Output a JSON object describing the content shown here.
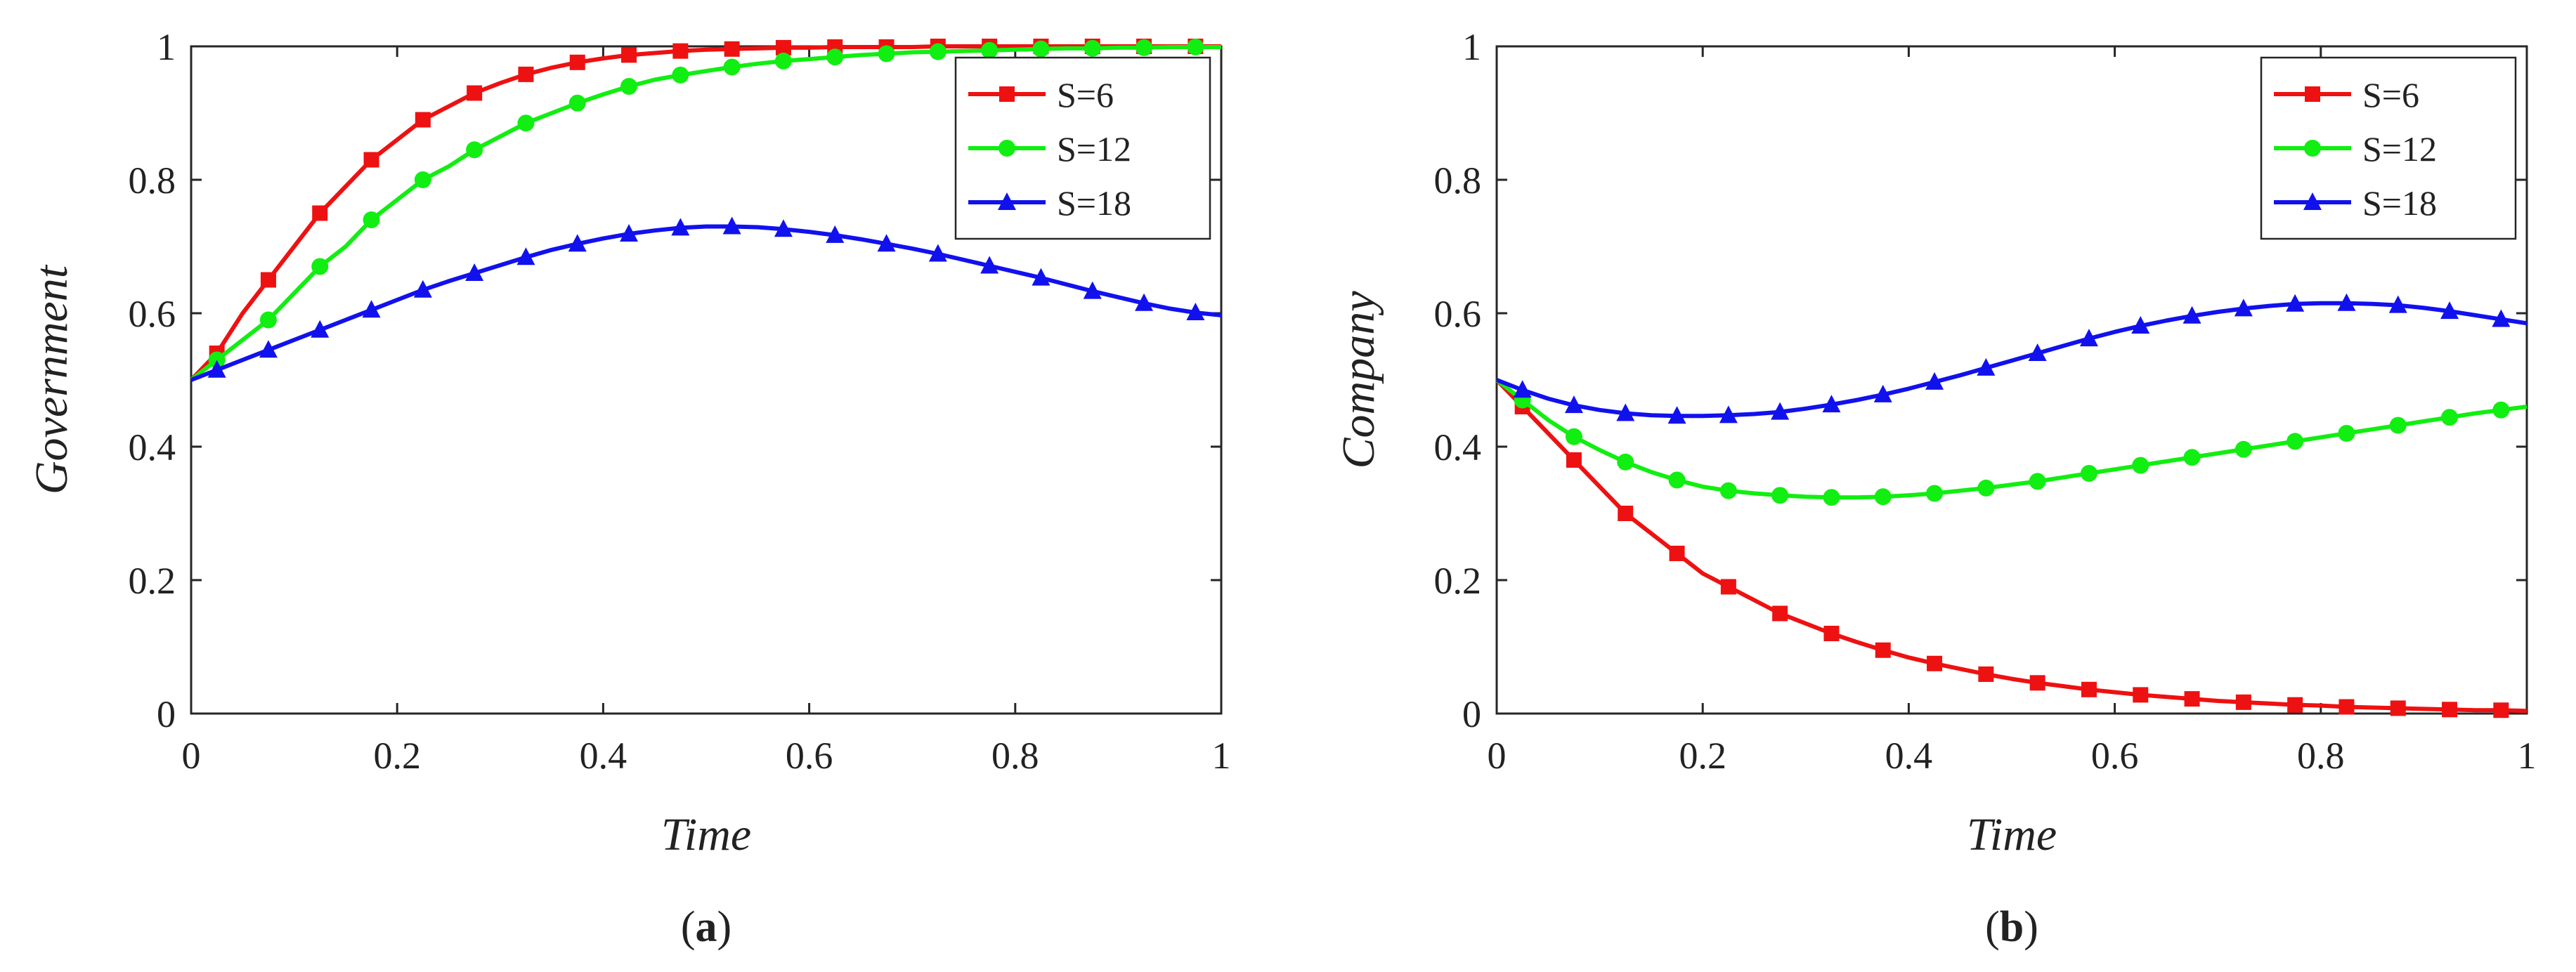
{
  "chart_data": [
    {
      "type": "line",
      "panel_label": {
        "open": "(",
        "letter": "a",
        "close": ")"
      },
      "xlabel": "Time",
      "ylabel": "Government",
      "xlim": [
        0,
        1
      ],
      "ylim": [
        0,
        1
      ],
      "x_ticks": [
        "0",
        "0.2",
        "0.4",
        "0.6",
        "0.8",
        "1"
      ],
      "y_ticks": [
        "0",
        "0.2",
        "0.4",
        "0.6",
        "0.8",
        "1"
      ],
      "legend_position": "top-right",
      "series": [
        {
          "name": "S=6",
          "color": "#ee1111",
          "marker": "square",
          "x": [
            0,
            0.025,
            0.05,
            0.075,
            0.1,
            0.125,
            0.15,
            0.175,
            0.2,
            0.225,
            0.25,
            0.275,
            0.3,
            0.325,
            0.35,
            0.375,
            0.4,
            0.425,
            0.45,
            0.475,
            0.5,
            0.525,
            0.55,
            0.575,
            0.6,
            0.625,
            0.65,
            0.675,
            0.7,
            0.725,
            0.75,
            0.775,
            0.8,
            0.825,
            0.85,
            0.875,
            0.9,
            0.925,
            0.95,
            0.975,
            1.0
          ],
          "y": [
            0.5,
            0.54,
            0.6,
            0.65,
            0.7,
            0.75,
            0.79,
            0.83,
            0.86,
            0.89,
            0.91,
            0.93,
            0.945,
            0.958,
            0.968,
            0.976,
            0.982,
            0.987,
            0.99,
            0.993,
            0.995,
            0.996,
            0.997,
            0.998,
            0.998,
            0.999,
            0.999,
            0.999,
            0.999,
            1.0,
            1.0,
            1.0,
            1.0,
            1.0,
            1.0,
            1.0,
            1.0,
            1.0,
            1.0,
            1.0,
            1.0
          ]
        },
        {
          "name": "S=12",
          "color": "#11ee11",
          "marker": "circle",
          "x": [
            0,
            0.025,
            0.05,
            0.075,
            0.1,
            0.125,
            0.15,
            0.175,
            0.2,
            0.225,
            0.25,
            0.275,
            0.3,
            0.325,
            0.35,
            0.375,
            0.4,
            0.425,
            0.45,
            0.475,
            0.5,
            0.525,
            0.55,
            0.575,
            0.6,
            0.625,
            0.65,
            0.675,
            0.7,
            0.725,
            0.75,
            0.775,
            0.8,
            0.825,
            0.85,
            0.875,
            0.9,
            0.925,
            0.95,
            0.975,
            1.0
          ],
          "y": [
            0.5,
            0.53,
            0.56,
            0.59,
            0.63,
            0.67,
            0.7,
            0.74,
            0.77,
            0.8,
            0.82,
            0.845,
            0.865,
            0.885,
            0.9,
            0.915,
            0.928,
            0.94,
            0.95,
            0.957,
            0.963,
            0.969,
            0.974,
            0.978,
            0.981,
            0.984,
            0.987,
            0.989,
            0.991,
            0.992,
            0.993,
            0.994,
            0.995,
            0.996,
            0.997,
            0.997,
            0.998,
            0.998,
            0.999,
            0.999,
            0.999
          ]
        },
        {
          "name": "S=18",
          "color": "#1111ee",
          "marker": "triangle",
          "x": [
            0,
            0.025,
            0.05,
            0.075,
            0.1,
            0.125,
            0.15,
            0.175,
            0.2,
            0.225,
            0.25,
            0.275,
            0.3,
            0.325,
            0.35,
            0.375,
            0.4,
            0.425,
            0.45,
            0.475,
            0.5,
            0.525,
            0.55,
            0.575,
            0.6,
            0.625,
            0.65,
            0.675,
            0.7,
            0.725,
            0.75,
            0.775,
            0.8,
            0.825,
            0.85,
            0.875,
            0.9,
            0.925,
            0.95,
            0.975,
            1.0
          ],
          "y": [
            0.5,
            0.515,
            0.53,
            0.545,
            0.56,
            0.575,
            0.59,
            0.605,
            0.62,
            0.635,
            0.648,
            0.66,
            0.672,
            0.684,
            0.695,
            0.704,
            0.712,
            0.719,
            0.724,
            0.728,
            0.73,
            0.73,
            0.729,
            0.726,
            0.722,
            0.717,
            0.711,
            0.704,
            0.697,
            0.689,
            0.68,
            0.671,
            0.662,
            0.653,
            0.643,
            0.633,
            0.624,
            0.615,
            0.607,
            0.601,
            0.597
          ]
        }
      ]
    },
    {
      "type": "line",
      "panel_label": {
        "open": "(",
        "letter": "b",
        "close": ")"
      },
      "xlabel": "Time",
      "ylabel": "Company",
      "xlim": [
        0,
        1
      ],
      "ylim": [
        0,
        1
      ],
      "x_ticks": [
        "0",
        "0.2",
        "0.4",
        "0.6",
        "0.8",
        "1"
      ],
      "y_ticks": [
        "0",
        "0.2",
        "0.4",
        "0.6",
        "0.8",
        "1"
      ],
      "legend_position": "top-right",
      "series": [
        {
          "name": "S=6",
          "color": "#ee1111",
          "marker": "square",
          "x": [
            0,
            0.025,
            0.05,
            0.075,
            0.1,
            0.125,
            0.15,
            0.175,
            0.2,
            0.225,
            0.25,
            0.275,
            0.3,
            0.325,
            0.35,
            0.375,
            0.4,
            0.425,
            0.45,
            0.475,
            0.5,
            0.525,
            0.55,
            0.575,
            0.6,
            0.625,
            0.65,
            0.675,
            0.7,
            0.725,
            0.75,
            0.775,
            0.8,
            0.825,
            0.85,
            0.875,
            0.9,
            0.925,
            0.95,
            0.975,
            1.0
          ],
          "y": [
            0.5,
            0.46,
            0.42,
            0.38,
            0.34,
            0.3,
            0.27,
            0.24,
            0.21,
            0.19,
            0.17,
            0.15,
            0.135,
            0.12,
            0.107,
            0.095,
            0.084,
            0.075,
            0.067,
            0.059,
            0.052,
            0.046,
            0.041,
            0.036,
            0.032,
            0.028,
            0.025,
            0.022,
            0.019,
            0.017,
            0.015,
            0.013,
            0.012,
            0.01,
            0.009,
            0.008,
            0.007,
            0.006,
            0.005,
            0.005,
            0.004
          ]
        },
        {
          "name": "S=12",
          "color": "#11ee11",
          "marker": "circle",
          "x": [
            0,
            0.025,
            0.05,
            0.075,
            0.1,
            0.125,
            0.15,
            0.175,
            0.2,
            0.225,
            0.25,
            0.275,
            0.3,
            0.325,
            0.35,
            0.375,
            0.4,
            0.425,
            0.45,
            0.475,
            0.5,
            0.525,
            0.55,
            0.575,
            0.6,
            0.625,
            0.65,
            0.675,
            0.7,
            0.725,
            0.75,
            0.775,
            0.8,
            0.825,
            0.85,
            0.875,
            0.9,
            0.925,
            0.95,
            0.975,
            1.0
          ],
          "y": [
            0.5,
            0.47,
            0.44,
            0.415,
            0.395,
            0.377,
            0.362,
            0.35,
            0.34,
            0.334,
            0.33,
            0.327,
            0.325,
            0.324,
            0.324,
            0.325,
            0.327,
            0.33,
            0.334,
            0.338,
            0.343,
            0.348,
            0.354,
            0.36,
            0.366,
            0.372,
            0.378,
            0.384,
            0.39,
            0.396,
            0.402,
            0.408,
            0.414,
            0.42,
            0.426,
            0.432,
            0.438,
            0.444,
            0.45,
            0.455,
            0.46
          ]
        },
        {
          "name": "S=18",
          "color": "#1111ee",
          "marker": "triangle",
          "x": [
            0,
            0.025,
            0.05,
            0.075,
            0.1,
            0.125,
            0.15,
            0.175,
            0.2,
            0.225,
            0.25,
            0.275,
            0.3,
            0.325,
            0.35,
            0.375,
            0.4,
            0.425,
            0.45,
            0.475,
            0.5,
            0.525,
            0.55,
            0.575,
            0.6,
            0.625,
            0.65,
            0.675,
            0.7,
            0.725,
            0.75,
            0.775,
            0.8,
            0.825,
            0.85,
            0.875,
            0.9,
            0.925,
            0.95,
            0.975,
            1.0
          ],
          "y": [
            0.5,
            0.485,
            0.472,
            0.462,
            0.455,
            0.45,
            0.447,
            0.446,
            0.446,
            0.447,
            0.449,
            0.452,
            0.457,
            0.463,
            0.47,
            0.478,
            0.487,
            0.497,
            0.507,
            0.518,
            0.529,
            0.54,
            0.551,
            0.562,
            0.572,
            0.581,
            0.589,
            0.596,
            0.602,
            0.607,
            0.611,
            0.614,
            0.615,
            0.615,
            0.614,
            0.612,
            0.608,
            0.603,
            0.597,
            0.591,
            0.585
          ]
        }
      ]
    }
  ]
}
